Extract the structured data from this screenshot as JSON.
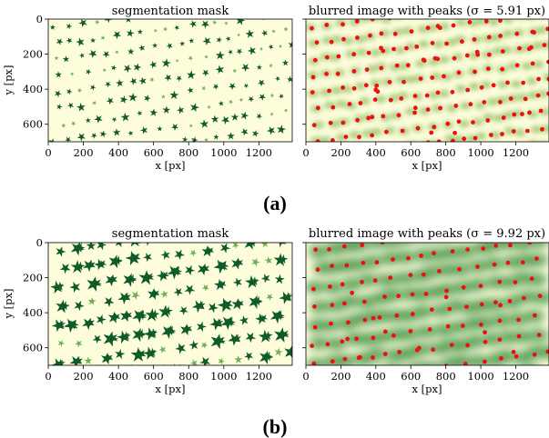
{
  "panels": [
    {
      "mask_title": "segmentation mask",
      "blur_title": "blurred image with peaks (σ = 5.91 px)",
      "caption": "(a)",
      "xlabel": "x [px]",
      "ylabel": "y [px]"
    },
    {
      "mask_title": "segmentation mask",
      "blur_title": "blurred image with peaks (σ = 9.92 px)",
      "caption": "(b)",
      "xlabel": "x [px]",
      "ylabel": "y [px]"
    }
  ],
  "x_ticks": [
    "0",
    "200",
    "400",
    "600",
    "800",
    "1000",
    "1200"
  ],
  "y_ticks": [
    "0",
    "200",
    "400",
    "600"
  ],
  "colors": {
    "background": "#fdfddc",
    "plant_dark": "#0f5a2a",
    "plant_light": "#6fae55",
    "peak": "#ee1111"
  },
  "chart_data": [
    {
      "type": "heatmap",
      "title": "segmentation mask",
      "xlabel": "x [px]",
      "ylabel": "y [px]",
      "xlim": [
        0,
        1390
      ],
      "ylim": [
        700,
        0
      ],
      "xticks": [
        0,
        200,
        400,
        600,
        800,
        1000,
        1200
      ],
      "yticks": [
        0,
        200,
        400,
        600
      ]
    },
    {
      "type": "scatter",
      "title": "blurred image with peaks (σ = 5.91 px)",
      "xlabel": "x [px]",
      "xlim": [
        0,
        1390
      ],
      "ylim": [
        700,
        0
      ],
      "xticks": [
        0,
        200,
        400,
        600,
        800,
        1000,
        1200
      ],
      "yticks": [
        0,
        200,
        400,
        600
      ]
    },
    {
      "type": "heatmap",
      "title": "segmentation mask",
      "xlabel": "x [px]",
      "ylabel": "y [px]",
      "xlim": [
        0,
        1390
      ],
      "ylim": [
        700,
        0
      ],
      "xticks": [
        0,
        200,
        400,
        600,
        800,
        1000,
        1200
      ],
      "yticks": [
        0,
        200,
        400,
        600
      ]
    },
    {
      "type": "scatter",
      "title": "blurred image with peaks (σ = 9.92 px)",
      "xlabel": "x [px]",
      "xlim": [
        0,
        1390
      ],
      "ylim": [
        700,
        0
      ],
      "xticks": [
        0,
        200,
        400,
        600,
        800,
        1000,
        1200
      ],
      "yticks": [
        0,
        200,
        400,
        600
      ]
    }
  ]
}
